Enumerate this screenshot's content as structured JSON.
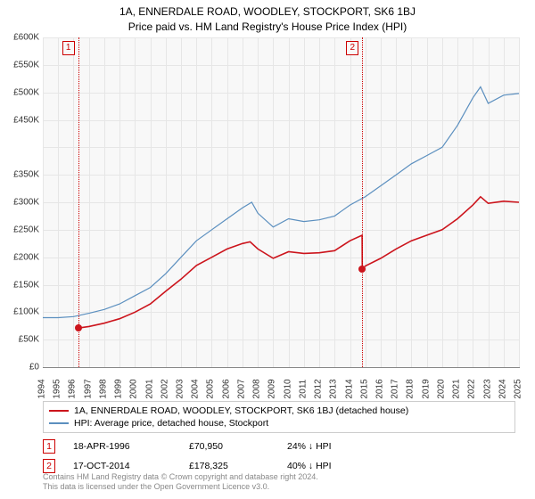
{
  "title": "1A, ENNERDALE ROAD, WOODLEY, STOCKPORT, SK6 1BJ",
  "subtitle": "Price paid vs. HM Land Registry's House Price Index (HPI)",
  "chart": {
    "type": "line",
    "background_color": "#f8f8f8",
    "grid_color": "#e6e6e6",
    "axis_color": "#888888",
    "label_color": "#333333",
    "label_fontsize": 10,
    "xlim": [
      1994,
      2025
    ],
    "ylim": [
      0,
      600000
    ],
    "ytick_step": 50000,
    "yticks": [
      "£0",
      "£50K",
      "£100K",
      "£150K",
      "£200K",
      "£250K",
      "£300K",
      "£350K",
      "",
      "£450K",
      "£500K",
      "£550K",
      "£600K"
    ],
    "xticks": [
      1994,
      1995,
      1996,
      1997,
      1998,
      1999,
      2000,
      2001,
      2002,
      2003,
      2004,
      2005,
      2006,
      2007,
      2008,
      2009,
      2010,
      2011,
      2012,
      2013,
      2014,
      2015,
      2016,
      2017,
      2018,
      2019,
      2020,
      2021,
      2022,
      2023,
      2024,
      2025
    ],
    "markers": [
      {
        "id": "1",
        "x": 1996.3
      },
      {
        "id": "2",
        "x": 2014.8
      }
    ],
    "series": [
      {
        "name": "property",
        "color": "#cc141c",
        "width": 1.6,
        "points": [
          [
            1996.3,
            70950
          ],
          [
            1997,
            74000
          ],
          [
            1998,
            80000
          ],
          [
            1999,
            88000
          ],
          [
            2000,
            100000
          ],
          [
            2001,
            115000
          ],
          [
            2002,
            138000
          ],
          [
            2003,
            160000
          ],
          [
            2004,
            185000
          ],
          [
            2005,
            200000
          ],
          [
            2006,
            215000
          ],
          [
            2007,
            225000
          ],
          [
            2007.5,
            228000
          ],
          [
            2008,
            215000
          ],
          [
            2009,
            198000
          ],
          [
            2010,
            210000
          ],
          [
            2011,
            207000
          ],
          [
            2012,
            208000
          ],
          [
            2013,
            212000
          ],
          [
            2014,
            230000
          ],
          [
            2014.79,
            240000
          ],
          [
            2014.8,
            178325
          ],
          [
            2015,
            184000
          ],
          [
            2016,
            198000
          ],
          [
            2017,
            215000
          ],
          [
            2018,
            230000
          ],
          [
            2019,
            240000
          ],
          [
            2020,
            250000
          ],
          [
            2021,
            270000
          ],
          [
            2022,
            295000
          ],
          [
            2022.5,
            310000
          ],
          [
            2023,
            298000
          ],
          [
            2024,
            302000
          ],
          [
            2025,
            300000
          ]
        ],
        "dots": [
          [
            1996.3,
            70950
          ],
          [
            2014.8,
            178325
          ]
        ]
      },
      {
        "name": "hpi",
        "color": "#5b8fbf",
        "width": 1.2,
        "points": [
          [
            1994,
            90000
          ],
          [
            1995,
            90000
          ],
          [
            1996,
            92000
          ],
          [
            1997,
            98000
          ],
          [
            1998,
            105000
          ],
          [
            1999,
            115000
          ],
          [
            2000,
            130000
          ],
          [
            2001,
            145000
          ],
          [
            2002,
            170000
          ],
          [
            2003,
            200000
          ],
          [
            2004,
            230000
          ],
          [
            2005,
            250000
          ],
          [
            2006,
            270000
          ],
          [
            2007,
            290000
          ],
          [
            2007.6,
            300000
          ],
          [
            2008,
            280000
          ],
          [
            2009,
            255000
          ],
          [
            2010,
            270000
          ],
          [
            2011,
            265000
          ],
          [
            2012,
            268000
          ],
          [
            2013,
            275000
          ],
          [
            2014,
            295000
          ],
          [
            2015,
            310000
          ],
          [
            2016,
            330000
          ],
          [
            2017,
            350000
          ],
          [
            2018,
            370000
          ],
          [
            2019,
            385000
          ],
          [
            2020,
            400000
          ],
          [
            2021,
            440000
          ],
          [
            2022,
            490000
          ],
          [
            2022.5,
            510000
          ],
          [
            2023,
            480000
          ],
          [
            2024,
            495000
          ],
          [
            2025,
            498000
          ]
        ]
      }
    ]
  },
  "legend": {
    "items": [
      {
        "color": "#cc141c",
        "width": 2,
        "label": "1A, ENNERDALE ROAD, WOODLEY, STOCKPORT, SK6 1BJ (detached house)"
      },
      {
        "color": "#5b8fbf",
        "width": 1.2,
        "label": "HPI: Average price, detached house, Stockport"
      }
    ]
  },
  "transactions": [
    {
      "id": "1",
      "date": "18-APR-1996",
      "price": "£70,950",
      "diff": "24% ↓ HPI"
    },
    {
      "id": "2",
      "date": "17-OCT-2014",
      "price": "£178,325",
      "diff": "40% ↓ HPI"
    }
  ],
  "footer_line1": "Contains HM Land Registry data © Crown copyright and database right 2024.",
  "footer_line2": "This data is licensed under the Open Government Licence v3.0."
}
